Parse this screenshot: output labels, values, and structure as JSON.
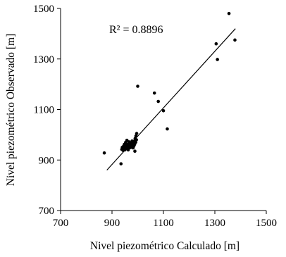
{
  "chart_data": {
    "type": "scatter",
    "title": "",
    "xlabel": "Nivel piezométrico Calculado [m]",
    "ylabel": "Nivel piezométrico Observado [m]",
    "xlim": [
      700,
      1500
    ],
    "ylim": [
      700,
      1500
    ],
    "xticks": [
      "700",
      "900",
      "1100",
      "1300",
      "1500"
    ],
    "yticks": [
      "700",
      "900",
      "1100",
      "1300",
      "1500"
    ],
    "grid": false,
    "legend": "none",
    "annotation": "R² = 0.8896",
    "trendline": {
      "x": [
        880,
        1380
      ],
      "y": [
        860,
        1420
      ]
    },
    "colors": {
      "marker": "#000000",
      "line": "#000000",
      "axis": "#000000"
    },
    "points": [
      {
        "x": 870,
        "y": 928
      },
      {
        "x": 935,
        "y": 885
      },
      {
        "x": 938,
        "y": 942
      },
      {
        "x": 940,
        "y": 950
      },
      {
        "x": 943,
        "y": 938
      },
      {
        "x": 945,
        "y": 955
      },
      {
        "x": 947,
        "y": 945
      },
      {
        "x": 948,
        "y": 962
      },
      {
        "x": 950,
        "y": 940
      },
      {
        "x": 952,
        "y": 950
      },
      {
        "x": 953,
        "y": 970
      },
      {
        "x": 955,
        "y": 945
      },
      {
        "x": 956,
        "y": 958
      },
      {
        "x": 958,
        "y": 978
      },
      {
        "x": 960,
        "y": 948
      },
      {
        "x": 961,
        "y": 962
      },
      {
        "x": 963,
        "y": 940
      },
      {
        "x": 965,
        "y": 955
      },
      {
        "x": 966,
        "y": 972
      },
      {
        "x": 968,
        "y": 948
      },
      {
        "x": 970,
        "y": 965
      },
      {
        "x": 972,
        "y": 958
      },
      {
        "x": 973,
        "y": 950
      },
      {
        "x": 975,
        "y": 968
      },
      {
        "x": 977,
        "y": 955
      },
      {
        "x": 978,
        "y": 975
      },
      {
        "x": 980,
        "y": 962
      },
      {
        "x": 982,
        "y": 948
      },
      {
        "x": 983,
        "y": 968
      },
      {
        "x": 985,
        "y": 955
      },
      {
        "x": 987,
        "y": 975
      },
      {
        "x": 988,
        "y": 962
      },
      {
        "x": 989,
        "y": 935
      },
      {
        "x": 990,
        "y": 985
      },
      {
        "x": 992,
        "y": 970
      },
      {
        "x": 993,
        "y": 995
      },
      {
        "x": 995,
        "y": 980
      },
      {
        "x": 996,
        "y": 1005
      },
      {
        "x": 1000,
        "y": 1192
      },
      {
        "x": 1065,
        "y": 1165
      },
      {
        "x": 1080,
        "y": 1132
      },
      {
        "x": 1100,
        "y": 1095
      },
      {
        "x": 1115,
        "y": 1023
      },
      {
        "x": 1305,
        "y": 1360
      },
      {
        "x": 1310,
        "y": 1298
      },
      {
        "x": 1355,
        "y": 1480
      },
      {
        "x": 1378,
        "y": 1375
      }
    ]
  }
}
